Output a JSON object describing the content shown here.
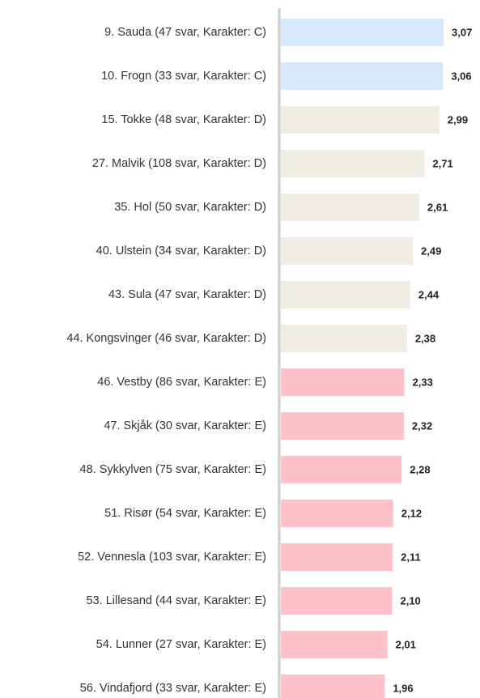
{
  "chart_data": {
    "type": "barh",
    "categories": [
      "9. Sauda (47 svar, Karakter: C)",
      "10. Frogn (33 svar, Karakter: C)",
      "15. Tokke (48 svar, Karakter: D)",
      "27. Malvik (108 svar, Karakter: D)",
      "35. Hol (50 svar, Karakter: D)",
      "40. Ulstein (34 svar, Karakter: D)",
      "43. Sula (47 svar, Karakter: D)",
      "44. Kongsvinger (46 svar, Karakter: D)",
      "46. Vestby (86 svar, Karakter: E)",
      "47. Skjåk (30 svar, Karakter: E)",
      "48. Sykkylven (75 svar, Karakter: E)",
      "51. Risør (54 svar, Karakter: E)",
      "52. Vennesla (103 svar, Karakter: E)",
      "53. Lillesand (44 svar, Karakter: E)",
      "54. Lunner (27 svar, Karakter: E)",
      "56. Vindafjord (33 svar, Karakter: E)"
    ],
    "values": [
      3.07,
      3.06,
      2.99,
      2.71,
      2.61,
      2.49,
      2.44,
      2.38,
      2.33,
      2.32,
      2.28,
      2.12,
      2.11,
      2.1,
      2.01,
      1.96
    ],
    "value_labels": [
      "3,07",
      "3,06",
      "2,99",
      "2,71",
      "2,61",
      "2,49",
      "2,44",
      "2,38",
      "2,33",
      "2,32",
      "2,28",
      "2,12",
      "2,11",
      "2,10",
      "2,01",
      "1,96"
    ],
    "colors": [
      "#d6e8fb",
      "#d6e8fb",
      "#f1ece2",
      "#f1ece2",
      "#f1ece2",
      "#f1ece2",
      "#f1ece2",
      "#f1ece2",
      "#fec1c8",
      "#fec1c8",
      "#fec1c8",
      "#fec1c8",
      "#fec1c8",
      "#fec1c8",
      "#fec1c8",
      "#fec1c8"
    ]
  }
}
